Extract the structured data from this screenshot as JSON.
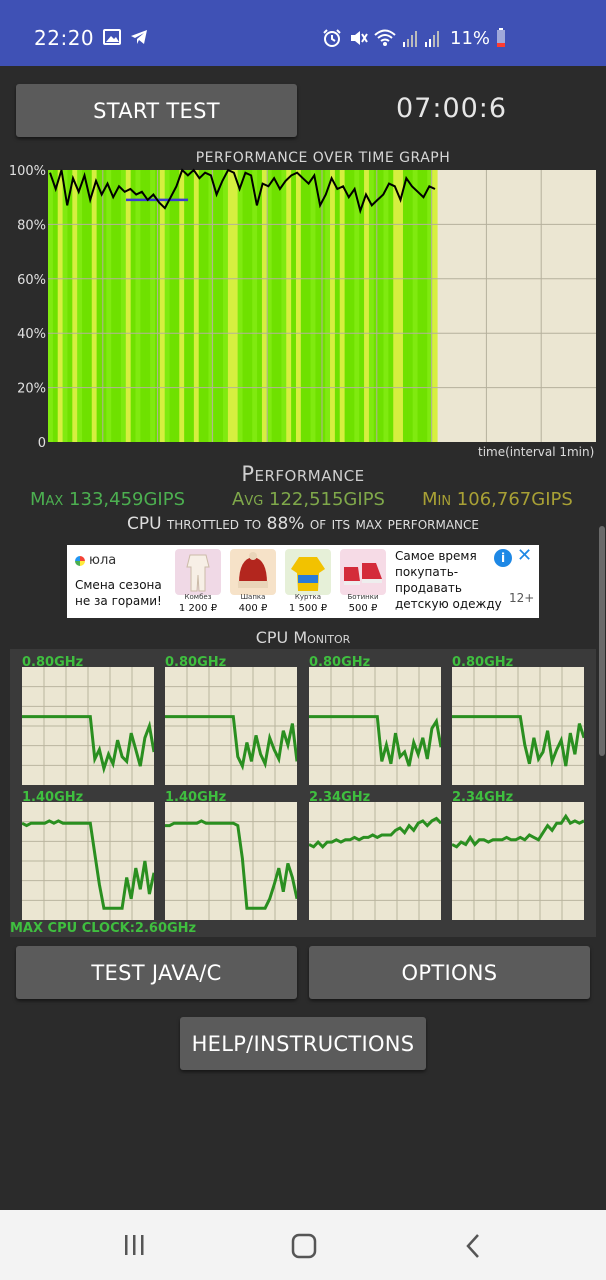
{
  "status_bar": {
    "time": "22:20",
    "battery": "11%",
    "left_icons": [
      "image-icon",
      "telegram-icon"
    ],
    "right_icons": [
      "alarm-icon",
      "mute-icon",
      "wifi-icon",
      "signal-icon",
      "signal-icon",
      "battery-low-icon"
    ]
  },
  "toolbar": {
    "start_label": "START TEST",
    "timer": "07:00:6"
  },
  "graph": {
    "title": "PERFORMANCE OVER TIME GRAPH",
    "y_ticks": [
      "100%",
      "80%",
      "60%",
      "40%",
      "20%",
      "0"
    ],
    "x_label": "time(interval 1min)",
    "trace_values": [
      99,
      93,
      100,
      87,
      97,
      92,
      98,
      89,
      96,
      91,
      95,
      90,
      94,
      92,
      93,
      91,
      92,
      89,
      91,
      88,
      86,
      90,
      94,
      100,
      98,
      100,
      97,
      99,
      98,
      91,
      96,
      100,
      99,
      93,
      99,
      98,
      87,
      95,
      94,
      97,
      93,
      96,
      98,
      99,
      97,
      95,
      98,
      87,
      91,
      97,
      93,
      94,
      90,
      93,
      85,
      91,
      87,
      89,
      91,
      95,
      94,
      89,
      97,
      94,
      92,
      90,
      94,
      93
    ],
    "avg_line": 89,
    "fill_fraction": 0.71,
    "colors": {
      "bar_green": "#6fe100",
      "bar_yellow": "#d6ef40",
      "grid_bg": "#ebe6d2",
      "trace": "#000000",
      "avg": "#3b3bd1"
    }
  },
  "performance": {
    "heading": "Performance",
    "max": "Max 133,459GIPS",
    "avg": "Avg 122,515GIPS",
    "min": "Min 106,767GIPS",
    "throttle": "CPU throttled to 88% of its max performance"
  },
  "ad": {
    "brand": "юла",
    "tagline": "Смена сезона не за горами!",
    "products": [
      {
        "name": "Комбез",
        "price": "1 200 ₽",
        "color": "#f0d9e6"
      },
      {
        "name": "Шапка",
        "price": "400 ₽",
        "color": "#f6e2c8"
      },
      {
        "name": "Куртка",
        "price": "1 500 ₽",
        "color": "#e6f0d8"
      },
      {
        "name": "Ботинки",
        "price": "500 ₽",
        "color": "#f6dbe6"
      }
    ],
    "copy": "Самое время покупать-продавать детскую одежду",
    "age": "12+",
    "info_icon": "i",
    "close_icon": "✕"
  },
  "cpu_monitor": {
    "title": "CPU Monitor",
    "max_clock": "MAX CPU CLOCK:2.60GHz",
    "cores": [
      {
        "label": "0.80GHz",
        "trace": [
          58,
          58,
          58,
          58,
          58,
          58,
          58,
          58,
          58,
          58,
          58,
          58,
          58,
          58,
          58,
          58,
          22,
          30,
          14,
          26,
          18,
          38,
          24,
          20,
          44,
          30,
          16,
          40,
          50,
          28
        ]
      },
      {
        "label": "0.80GHz",
        "trace": [
          58,
          58,
          58,
          58,
          58,
          58,
          58,
          58,
          58,
          58,
          58,
          58,
          58,
          58,
          58,
          58,
          24,
          16,
          36,
          20,
          42,
          26,
          18,
          40,
          30,
          22,
          46,
          34,
          52,
          20
        ]
      },
      {
        "label": "0.80GHz",
        "trace": [
          58,
          58,
          58,
          58,
          58,
          58,
          58,
          58,
          58,
          58,
          58,
          58,
          58,
          58,
          58,
          58,
          20,
          34,
          18,
          44,
          24,
          28,
          16,
          36,
          26,
          40,
          22,
          48,
          54,
          32
        ]
      },
      {
        "label": "0.80GHz",
        "trace": [
          58,
          58,
          58,
          58,
          58,
          58,
          58,
          58,
          58,
          58,
          58,
          58,
          58,
          58,
          58,
          58,
          34,
          18,
          40,
          22,
          28,
          46,
          20,
          30,
          38,
          16,
          44,
          26,
          52,
          40
        ]
      },
      {
        "label": "1.40GHz",
        "trace": [
          82,
          80,
          82,
          82,
          82,
          82,
          84,
          82,
          84,
          82,
          82,
          82,
          82,
          82,
          82,
          82,
          56,
          30,
          10,
          10,
          10,
          10,
          10,
          36,
          18,
          44,
          26,
          50,
          22,
          40
        ]
      },
      {
        "label": "1.40GHz",
        "trace": [
          80,
          80,
          82,
          82,
          82,
          82,
          82,
          82,
          84,
          82,
          82,
          82,
          82,
          82,
          82,
          82,
          80,
          52,
          10,
          10,
          10,
          10,
          10,
          18,
          30,
          44,
          24,
          48,
          36,
          18
        ]
      },
      {
        "label": "2.34GHz",
        "trace": [
          64,
          62,
          66,
          62,
          66,
          66,
          68,
          66,
          68,
          68,
          70,
          68,
          70,
          70,
          72,
          70,
          72,
          72,
          72,
          76,
          78,
          74,
          80,
          76,
          82,
          84,
          80,
          84,
          86,
          82
        ]
      },
      {
        "label": "2.34GHz",
        "trace": [
          64,
          62,
          66,
          64,
          70,
          64,
          68,
          68,
          66,
          68,
          68,
          68,
          70,
          68,
          68,
          70,
          68,
          72,
          70,
          68,
          74,
          80,
          76,
          82,
          82,
          88,
          82,
          84,
          82,
          84
        ]
      }
    ],
    "colors": {
      "trace": "#2a8f20",
      "bg": "#ebe6d2",
      "label": "#3fbf3f"
    }
  },
  "buttons": {
    "test_java": "TEST JAVA/C",
    "options": "OPTIONS",
    "help": "HELP/INSTRUCTIONS"
  },
  "nav": {
    "recent_icon": "recent-apps-icon",
    "home_icon": "home-icon",
    "back_icon": "back-icon"
  }
}
